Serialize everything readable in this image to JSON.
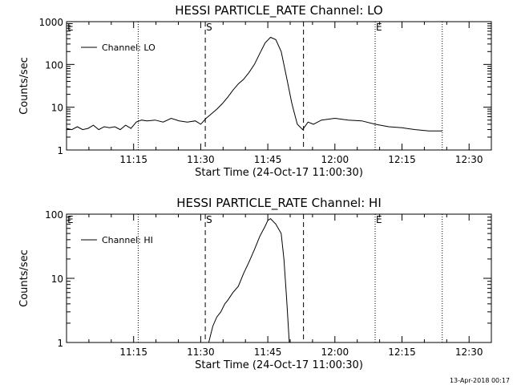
{
  "footer_timestamp": "13-Apr-2018 00:17",
  "chart_data": [
    {
      "type": "line",
      "title": "HESSI PARTICLE_RATE Channel: LO",
      "xlabel": "Start Time (24-Oct-17 11:00:30)",
      "ylabel": "Counts/sec",
      "y_scale": "log",
      "xlim": [
        11.0,
        12.583
      ],
      "ylim": [
        1,
        1000
      ],
      "x_ticks": [
        {
          "v": 11.25,
          "label": "11:15"
        },
        {
          "v": 11.5,
          "label": "11:30"
        },
        {
          "v": 11.75,
          "label": "11:45"
        },
        {
          "v": 12.0,
          "label": "12:00"
        },
        {
          "v": 12.25,
          "label": "12:15"
        },
        {
          "v": 12.5,
          "label": "12:30"
        }
      ],
      "y_ticks": [
        {
          "v": 1,
          "label": "1"
        },
        {
          "v": 10,
          "label": "10"
        },
        {
          "v": 100,
          "label": "100"
        },
        {
          "v": 1000,
          "label": "1000"
        }
      ],
      "legend": {
        "label": "Channel: LO",
        "position": "top-left"
      },
      "markers": [
        {
          "x": 11.0,
          "style": "dotted",
          "label": "E"
        },
        {
          "x": 11.267,
          "style": "dotted",
          "label": ""
        },
        {
          "x": 11.517,
          "style": "dashed",
          "label": "S"
        },
        {
          "x": 11.883,
          "style": "dashed",
          "label": ""
        },
        {
          "x": 12.15,
          "style": "dotted",
          "label": "E"
        },
        {
          "x": 12.4,
          "style": "dotted",
          "label": ""
        }
      ],
      "series": [
        {
          "name": "Channel: LO",
          "x": [
            11.0,
            11.02,
            11.04,
            11.06,
            11.08,
            11.1,
            11.12,
            11.14,
            11.16,
            11.18,
            11.2,
            11.22,
            11.24,
            11.26,
            11.28,
            11.3,
            11.33,
            11.36,
            11.39,
            11.42,
            11.45,
            11.48,
            11.5,
            11.52,
            11.54,
            11.56,
            11.58,
            11.6,
            11.62,
            11.64,
            11.66,
            11.68,
            11.7,
            11.72,
            11.74,
            11.76,
            11.78,
            11.8,
            11.82,
            11.84,
            11.86,
            11.88,
            11.9,
            11.92,
            11.95,
            12.0,
            12.05,
            12.1,
            12.15,
            12.2,
            12.25,
            12.3,
            12.35,
            12.4
          ],
          "y": [
            3.2,
            3.0,
            3.5,
            3.0,
            3.2,
            3.8,
            3.0,
            3.5,
            3.3,
            3.5,
            3.0,
            3.8,
            3.2,
            4.5,
            5.0,
            4.8,
            5.0,
            4.5,
            5.5,
            4.8,
            4.5,
            4.8,
            4.0,
            5.5,
            7.0,
            9.0,
            12.0,
            17.0,
            25.0,
            35.0,
            45.0,
            65.0,
            100.0,
            180.0,
            320.0,
            430.0,
            380.0,
            200.0,
            50.0,
            12.0,
            4.0,
            3.0,
            4.5,
            4.0,
            5.0,
            5.5,
            5.0,
            4.8,
            4.0,
            3.5,
            3.3,
            3.0,
            2.8,
            2.8
          ]
        }
      ]
    },
    {
      "type": "line",
      "title": "HESSI PARTICLE_RATE Channel: HI",
      "xlabel": "Start Time (24-Oct-17 11:00:30)",
      "ylabel": "Counts/sec",
      "y_scale": "log",
      "xlim": [
        11.0,
        12.583
      ],
      "ylim": [
        1,
        100
      ],
      "x_ticks": [
        {
          "v": 11.25,
          "label": "11:15"
        },
        {
          "v": 11.5,
          "label": "11:30"
        },
        {
          "v": 11.75,
          "label": "11:45"
        },
        {
          "v": 12.0,
          "label": "12:00"
        },
        {
          "v": 12.25,
          "label": "12:15"
        },
        {
          "v": 12.5,
          "label": "12:30"
        }
      ],
      "y_ticks": [
        {
          "v": 1,
          "label": "1"
        },
        {
          "v": 10,
          "label": "10"
        },
        {
          "v": 100,
          "label": "100"
        }
      ],
      "legend": {
        "label": "Channel: HI",
        "position": "top-left"
      },
      "markers": [
        {
          "x": 11.0,
          "style": "dotted",
          "label": "E"
        },
        {
          "x": 11.267,
          "style": "dotted",
          "label": ""
        },
        {
          "x": 11.517,
          "style": "dashed",
          "label": "S"
        },
        {
          "x": 11.883,
          "style": "dashed",
          "label": ""
        },
        {
          "x": 12.15,
          "style": "dotted",
          "label": "E"
        },
        {
          "x": 12.4,
          "style": "dotted",
          "label": ""
        }
      ],
      "series": [
        {
          "name": "Channel: HI",
          "x": [
            11.53,
            11.545,
            11.56,
            11.575,
            11.59,
            11.6,
            11.62,
            11.64,
            11.66,
            11.68,
            11.7,
            11.72,
            11.74,
            11.75,
            11.76,
            11.78,
            11.8,
            11.81,
            11.82,
            11.83
          ],
          "y": [
            1.0,
            1.8,
            2.5,
            3.0,
            4.0,
            4.5,
            6.0,
            7.5,
            12.0,
            18.0,
            28.0,
            45.0,
            65.0,
            80.0,
            85.0,
            70.0,
            50.0,
            20.0,
            5.0,
            1.0
          ]
        }
      ]
    }
  ]
}
